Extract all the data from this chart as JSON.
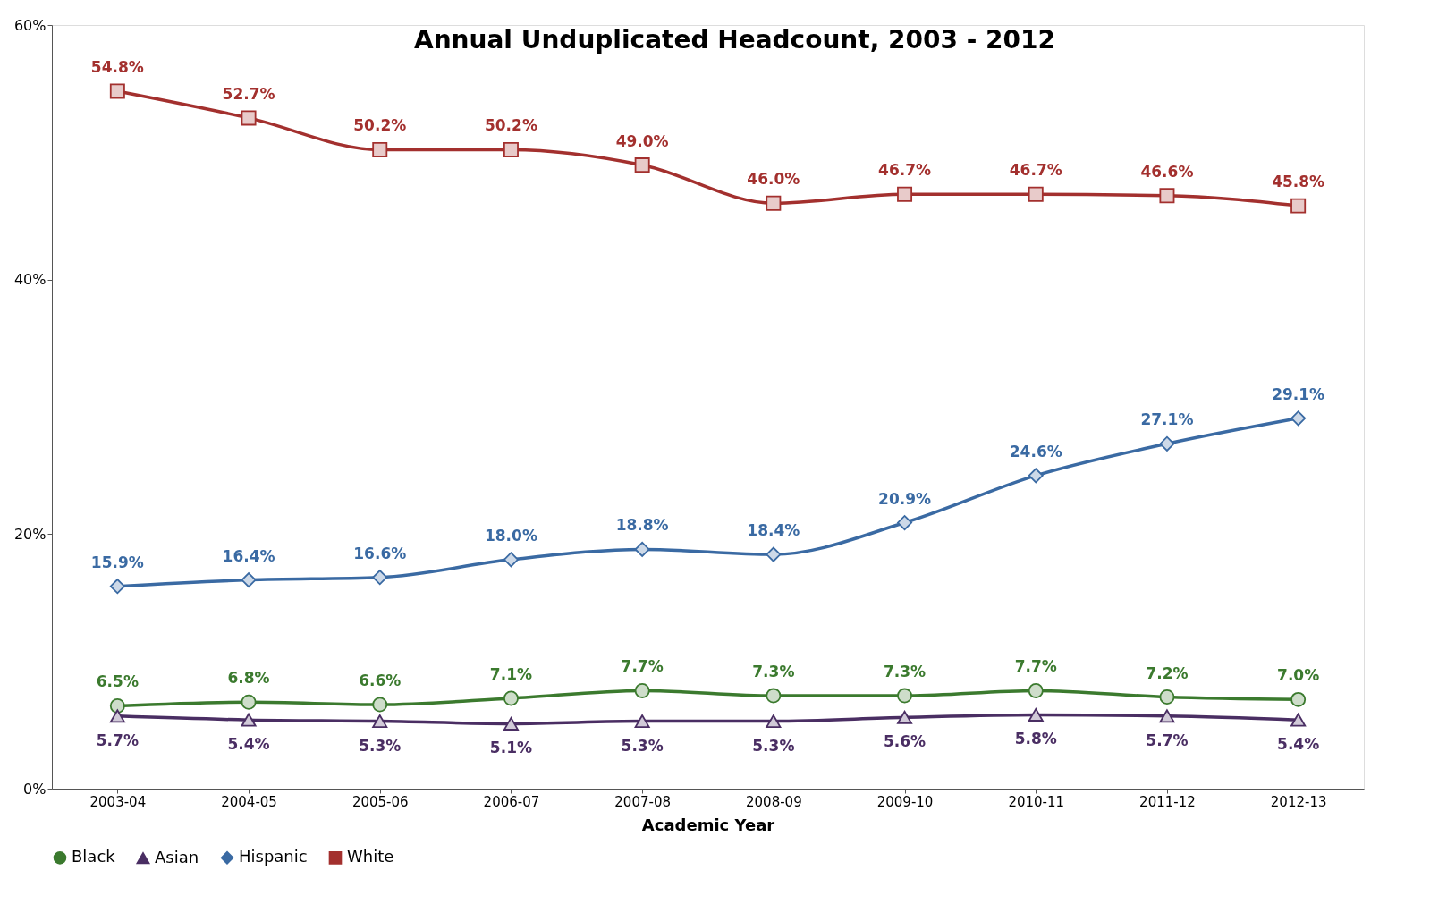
{
  "chart_data": {
    "type": "line",
    "title": "Annual Unduplicated Headcount, 2003 - 2012",
    "xlabel": "Academic Year",
    "categories": [
      "2003-04",
      "2004-05",
      "2005-06",
      "2006-07",
      "2007-08",
      "2008-09",
      "2009-10",
      "2010-11",
      "2011-12",
      "2012-13"
    ],
    "series": [
      {
        "name": "Black",
        "color": "#3b7a2e",
        "marker": "circle",
        "values": [
          6.5,
          6.8,
          6.6,
          7.1,
          7.7,
          7.3,
          7.3,
          7.7,
          7.2,
          7.0
        ],
        "value_labels": [
          "6.5%",
          "6.8%",
          "6.6%",
          "7.1%",
          "7.7%",
          "7.3%",
          "7.3%",
          "7.7%",
          "7.2%",
          "7.0%"
        ]
      },
      {
        "name": "Asian",
        "color": "#4a2e63",
        "marker": "triangle",
        "values": [
          5.7,
          5.4,
          5.3,
          5.1,
          5.3,
          5.3,
          5.6,
          5.8,
          5.7,
          5.4
        ],
        "value_labels": [
          "5.7%",
          "5.4%",
          "5.3%",
          "5.1%",
          "5.3%",
          "5.3%",
          "5.6%",
          "5.8%",
          "5.7%",
          "5.4%"
        ]
      },
      {
        "name": "Hispanic",
        "color": "#3a6aa3",
        "marker": "diamond",
        "values": [
          15.9,
          16.4,
          16.6,
          18.0,
          18.8,
          18.4,
          20.9,
          24.6,
          27.1,
          29.1
        ],
        "value_labels": [
          "15.9%",
          "16.4%",
          "16.6%",
          "18.0%",
          "18.8%",
          "18.4%",
          "20.9%",
          "24.6%",
          "27.1%",
          "29.1%"
        ]
      },
      {
        "name": "White",
        "color": "#a3302e",
        "marker": "square",
        "values": [
          54.8,
          52.7,
          50.2,
          50.2,
          49.0,
          46.0,
          46.7,
          46.7,
          46.6,
          45.8
        ],
        "value_labels": [
          "54.8%",
          "52.7%",
          "50.2%",
          "50.2%",
          "49.0%",
          "46.0%",
          "46.7%",
          "46.7%",
          "46.6%",
          "45.8%"
        ]
      }
    ],
    "ylim": [
      0,
      60
    ],
    "yticks": [
      {
        "value": 0,
        "label": "0%"
      },
      {
        "value": 20,
        "label": "20%"
      },
      {
        "value": 40,
        "label": "40%"
      },
      {
        "value": 60,
        "label": "60%"
      }
    ],
    "grid": false,
    "legend": "bottom",
    "line_style": "solid"
  }
}
